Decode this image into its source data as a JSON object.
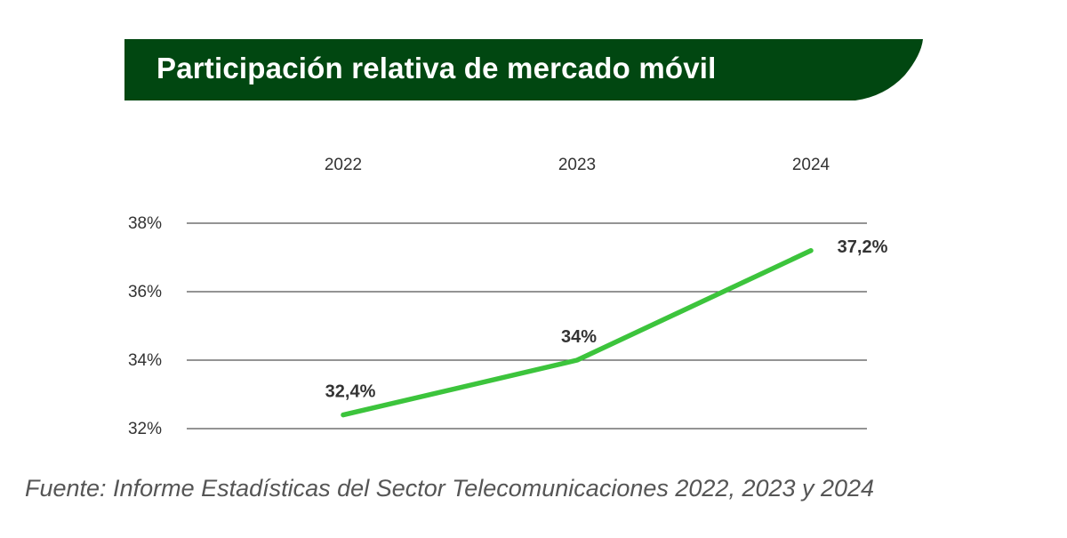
{
  "colors": {
    "banner": "#014711",
    "line": "#3cc43c",
    "grid": "#555555",
    "axis_text": "#333333",
    "label_text": "#333333",
    "source_text": "#555555"
  },
  "chart_data": {
    "type": "line",
    "title": "Participación relativa de mercado móvil",
    "categories": [
      "2022",
      "2023",
      "2024"
    ],
    "series": [
      {
        "values": [
          32.4,
          34.0,
          37.2
        ]
      }
    ],
    "data_labels": [
      "32,4%",
      "34%",
      "37,2%"
    ],
    "yticks": [
      {
        "value": 32,
        "label": "32%"
      },
      {
        "value": 34,
        "label": "34%"
      },
      {
        "value": 36,
        "label": "36%"
      },
      {
        "value": 38,
        "label": "38%"
      }
    ],
    "ylim": [
      32,
      38
    ],
    "grid": true,
    "x_axis_position": "top",
    "xlabel": "",
    "ylabel": "",
    "legend": false
  },
  "source": "Fuente: Informe Estadísticas del Sector Telecomunicaciones 2022, 2023 y 2024"
}
